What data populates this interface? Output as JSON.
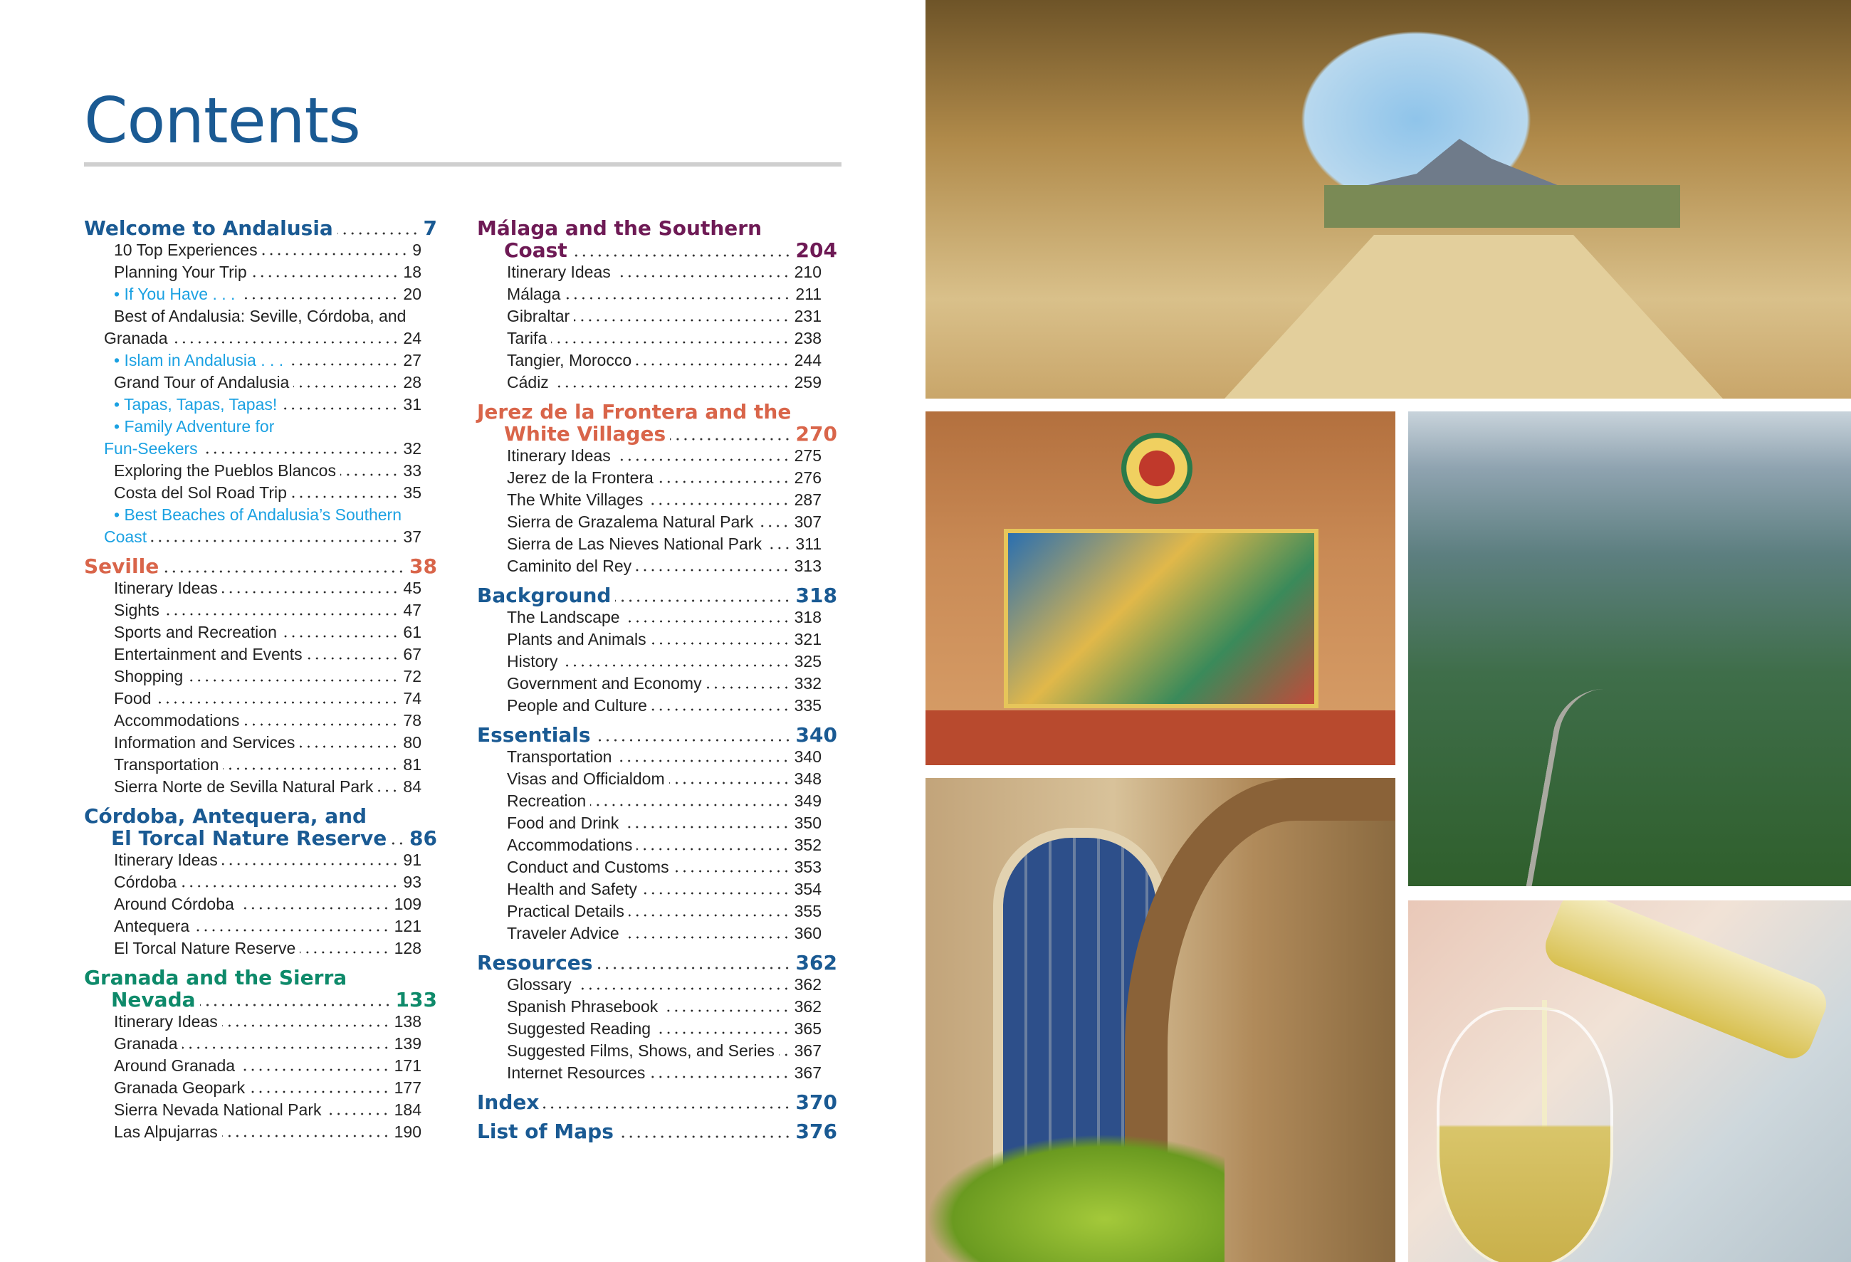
{
  "title": "Contents",
  "colors": {
    "title": "#1a5a93",
    "blue": "#1a5a93",
    "seville": "#d9654a",
    "malaga": "#6e1a55",
    "jerez": "#d9654a",
    "granada": "#0e8a6a",
    "link": "#1ba1e2",
    "rule": "#cfcfcf"
  },
  "left_column": [
    {
      "type": "head",
      "color": "blue",
      "lines": [
        "Welcome to Andalusia"
      ],
      "page": "7"
    },
    {
      "type": "sub",
      "lines": [
        "10 Top Experiences"
      ],
      "page": "9"
    },
    {
      "type": "sub",
      "lines": [
        "Planning Your Trip"
      ],
      "page": "18"
    },
    {
      "type": "link",
      "lines": [
        "• If You Have . . ."
      ],
      "page": "20"
    },
    {
      "type": "sub",
      "lines": [
        "Best of Andalusia: Seville, Córdoba, and",
        "Granada"
      ],
      "page": "24"
    },
    {
      "type": "link",
      "lines": [
        "• Islam in Andalusia . . ."
      ],
      "page": "27"
    },
    {
      "type": "sub",
      "lines": [
        "Grand Tour of Andalusia"
      ],
      "page": "28"
    },
    {
      "type": "link",
      "lines": [
        "• Tapas, Tapas, Tapas!"
      ],
      "page": "31"
    },
    {
      "type": "link",
      "lines": [
        "• Family Adventure for",
        "Fun-Seekers"
      ],
      "page": "32"
    },
    {
      "type": "sub",
      "lines": [
        "Exploring the Pueblos Blancos"
      ],
      "page": "33"
    },
    {
      "type": "sub",
      "lines": [
        "Costa del Sol Road Trip"
      ],
      "page": "35"
    },
    {
      "type": "link",
      "lines": [
        "• Best Beaches of Andalusia’s Southern",
        "Coast"
      ],
      "page": "37"
    },
    {
      "type": "head",
      "color": "seville",
      "lines": [
        "Seville"
      ],
      "page": "38"
    },
    {
      "type": "sub",
      "lines": [
        "Itinerary Ideas"
      ],
      "page": "45"
    },
    {
      "type": "sub",
      "lines": [
        "Sights"
      ],
      "page": "47"
    },
    {
      "type": "sub",
      "lines": [
        "Sports and Recreation"
      ],
      "page": "61"
    },
    {
      "type": "sub",
      "lines": [
        "Entertainment and Events"
      ],
      "page": "67"
    },
    {
      "type": "sub",
      "lines": [
        "Shopping"
      ],
      "page": "72"
    },
    {
      "type": "sub",
      "lines": [
        "Food"
      ],
      "page": "74"
    },
    {
      "type": "sub",
      "lines": [
        "Accommodations"
      ],
      "page": "78"
    },
    {
      "type": "sub",
      "lines": [
        "Information and Services"
      ],
      "page": "80"
    },
    {
      "type": "sub",
      "lines": [
        "Transportation"
      ],
      "page": "81"
    },
    {
      "type": "sub",
      "lines": [
        "Sierra Norte de Sevilla Natural Park"
      ],
      "page": "84"
    },
    {
      "type": "head",
      "color": "blue",
      "lines": [
        "Córdoba, Antequera, and",
        "El Torcal Nature Reserve"
      ],
      "page": "86"
    },
    {
      "type": "sub",
      "lines": [
        "Itinerary Ideas"
      ],
      "page": "91"
    },
    {
      "type": "sub",
      "lines": [
        "Córdoba"
      ],
      "page": "93"
    },
    {
      "type": "sub",
      "lines": [
        "Around Córdoba"
      ],
      "page": "109"
    },
    {
      "type": "sub",
      "lines": [
        "Antequera"
      ],
      "page": "121"
    },
    {
      "type": "sub",
      "lines": [
        "El Torcal Nature Reserve"
      ],
      "page": "128"
    },
    {
      "type": "head",
      "color": "granada",
      "lines": [
        "Granada and the Sierra",
        "Nevada"
      ],
      "page": "133"
    },
    {
      "type": "sub",
      "lines": [
        "Itinerary Ideas"
      ],
      "page": "138"
    },
    {
      "type": "sub",
      "lines": [
        "Granada"
      ],
      "page": "139"
    },
    {
      "type": "sub",
      "lines": [
        "Around Granada"
      ],
      "page": "171"
    },
    {
      "type": "sub",
      "lines": [
        "Granada Geopark"
      ],
      "page": "177"
    },
    {
      "type": "sub",
      "lines": [
        "Sierra Nevada National Park"
      ],
      "page": "184"
    },
    {
      "type": "sub",
      "lines": [
        "Las Alpujarras"
      ],
      "page": "190"
    }
  ],
  "middle_column": [
    {
      "type": "head",
      "color": "malaga",
      "lines": [
        "Málaga and the Southern",
        "Coast"
      ],
      "page": "204"
    },
    {
      "type": "sub",
      "lines": [
        "Itinerary Ideas"
      ],
      "page": "210"
    },
    {
      "type": "sub",
      "lines": [
        "Málaga"
      ],
      "page": "211"
    },
    {
      "type": "sub",
      "lines": [
        "Gibraltar"
      ],
      "page": "231"
    },
    {
      "type": "sub",
      "lines": [
        "Tarifa"
      ],
      "page": "238"
    },
    {
      "type": "sub",
      "lines": [
        "Tangier, Morocco"
      ],
      "page": "244"
    },
    {
      "type": "sub",
      "lines": [
        "Cádiz"
      ],
      "page": "259"
    },
    {
      "type": "head",
      "color": "jerez",
      "lines": [
        "Jerez de la Frontera and the",
        "White Villages"
      ],
      "page": "270"
    },
    {
      "type": "sub",
      "lines": [
        "Itinerary Ideas"
      ],
      "page": "275"
    },
    {
      "type": "sub",
      "lines": [
        "Jerez de la Frontera"
      ],
      "page": "276"
    },
    {
      "type": "sub",
      "lines": [
        "The White Villages"
      ],
      "page": "287"
    },
    {
      "type": "sub",
      "lines": [
        "Sierra de Grazalema Natural Park"
      ],
      "page": "307"
    },
    {
      "type": "sub",
      "lines": [
        "Sierra de Las Nieves National Park"
      ],
      "page": "311"
    },
    {
      "type": "sub",
      "lines": [
        "Caminito del Rey"
      ],
      "page": "313"
    },
    {
      "type": "head",
      "color": "blue",
      "lines": [
        "Background"
      ],
      "page": "318"
    },
    {
      "type": "sub",
      "lines": [
        "The Landscape"
      ],
      "page": "318"
    },
    {
      "type": "sub",
      "lines": [
        "Plants and Animals"
      ],
      "page": "321"
    },
    {
      "type": "sub",
      "lines": [
        "History"
      ],
      "page": "325"
    },
    {
      "type": "sub",
      "lines": [
        "Government and Economy"
      ],
      "page": "332"
    },
    {
      "type": "sub",
      "lines": [
        "People and Culture"
      ],
      "page": "335"
    },
    {
      "type": "head",
      "color": "blue",
      "lines": [
        "Essentials"
      ],
      "page": "340"
    },
    {
      "type": "sub",
      "lines": [
        "Transportation"
      ],
      "page": "340"
    },
    {
      "type": "sub",
      "lines": [
        "Visas and Officialdom"
      ],
      "page": "348"
    },
    {
      "type": "sub",
      "lines": [
        "Recreation"
      ],
      "page": "349"
    },
    {
      "type": "sub",
      "lines": [
        "Food and Drink"
      ],
      "page": "350"
    },
    {
      "type": "sub",
      "lines": [
        "Accommodations"
      ],
      "page": "352"
    },
    {
      "type": "sub",
      "lines": [
        "Conduct and Customs"
      ],
      "page": "353"
    },
    {
      "type": "sub",
      "lines": [
        "Health and Safety"
      ],
      "page": "354"
    },
    {
      "type": "sub",
      "lines": [
        "Practical Details"
      ],
      "page": "355"
    },
    {
      "type": "sub",
      "lines": [
        "Traveler Advice"
      ],
      "page": "360"
    },
    {
      "type": "head",
      "color": "blue",
      "lines": [
        "Resources"
      ],
      "page": "362"
    },
    {
      "type": "sub",
      "lines": [
        "Glossary"
      ],
      "page": "362"
    },
    {
      "type": "sub",
      "lines": [
        "Spanish Phrasebook"
      ],
      "page": "362"
    },
    {
      "type": "sub",
      "lines": [
        "Suggested Reading"
      ],
      "page": "365"
    },
    {
      "type": "sub",
      "lines": [
        "Suggested Films, Shows, and Series"
      ],
      "page": "367"
    },
    {
      "type": "sub",
      "lines": [
        "Internet Resources"
      ],
      "page": "367"
    },
    {
      "type": "head",
      "color": "blue",
      "lines": [
        "Index"
      ],
      "page": "370"
    },
    {
      "type": "head",
      "color": "blue",
      "lines": [
        "List of Maps"
      ],
      "page": "376"
    }
  ],
  "photos": [
    "cave-dolmen-photo",
    "tiled-bench-photo",
    "mountain-road-photo",
    "cathedral-window-photo",
    "white-wine-photo"
  ]
}
